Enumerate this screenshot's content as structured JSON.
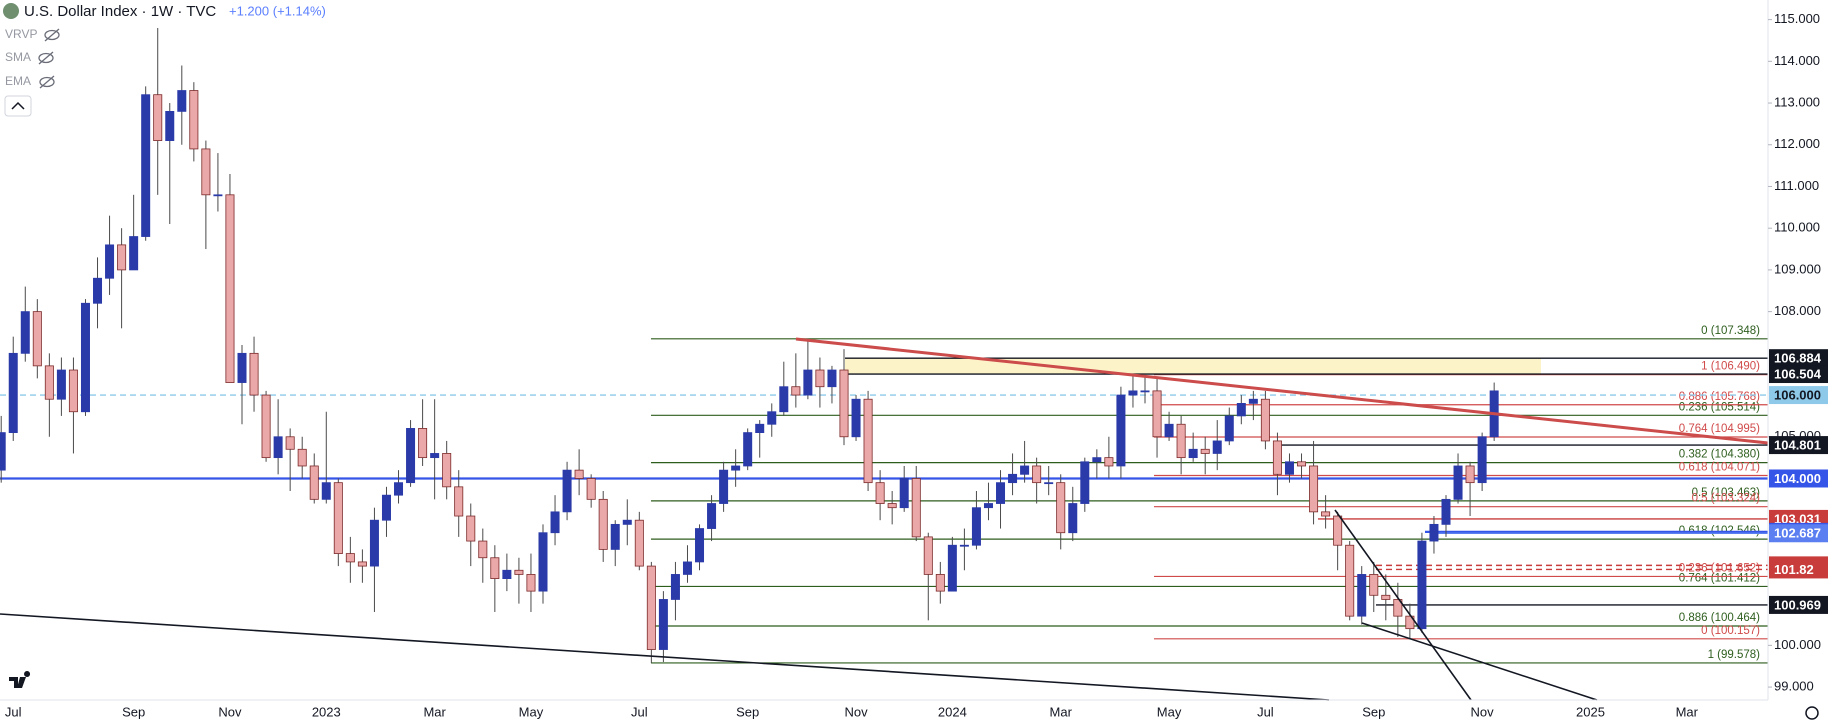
{
  "header": {
    "title": "U.S. Dollar Index · 1W · TVC",
    "change": "+1.200 (+1.14%)",
    "indicators": [
      "VRVP",
      "SMA",
      "EMA"
    ]
  },
  "chart_data": {
    "type": "candlestick",
    "bull_color": "#2a3aa8",
    "bear_color": "#eaa8a8",
    "bear_border": "#7d2b2b",
    "wick_color": "#4a4a4a",
    "ylim": [
      98.69,
      115.47
    ],
    "yticks": [
      {
        "value": 99,
        "label": "99.000"
      },
      {
        "value": 100,
        "label": "100.000"
      },
      {
        "value": 105,
        "label": "105.000"
      },
      {
        "value": 108,
        "label": "108.000"
      },
      {
        "value": 109,
        "label": "109.000"
      },
      {
        "value": 110,
        "label": "110.000"
      },
      {
        "value": 111,
        "label": "111.000"
      },
      {
        "value": 112,
        "label": "112.000"
      },
      {
        "value": 113,
        "label": "113.000"
      },
      {
        "value": 114,
        "label": "114.000"
      },
      {
        "value": 115,
        "label": "115.000"
      }
    ],
    "categories": [
      null,
      "Jul",
      null,
      null,
      null,
      null,
      null,
      null,
      null,
      null,
      null,
      "Sep",
      null,
      null,
      null,
      null,
      null,
      null,
      null,
      "Nov",
      null,
      null,
      null,
      null,
      null,
      null,
      null,
      "2023",
      null,
      null,
      null,
      null,
      null,
      null,
      null,
      null,
      "Mar",
      null,
      null,
      null,
      null,
      null,
      null,
      null,
      "May",
      null,
      null,
      null,
      null,
      null,
      null,
      null,
      null,
      "Jul",
      null,
      null,
      null,
      null,
      null,
      null,
      null,
      null,
      "Sep",
      null,
      null,
      null,
      null,
      null,
      null,
      null,
      null,
      "Nov",
      null,
      null,
      null,
      null,
      null,
      null,
      null,
      "2024",
      null,
      null,
      null,
      null,
      null,
      null,
      null,
      null,
      "Mar",
      null,
      null,
      null,
      null,
      null,
      null,
      null,
      null,
      "May",
      null,
      null,
      null,
      null,
      null,
      null,
      null,
      "Jul",
      null,
      null,
      null,
      null,
      null,
      null,
      null,
      null,
      "Sep",
      null,
      null,
      null,
      null,
      null,
      null,
      null,
      null,
      "Nov",
      null,
      null,
      null,
      null,
      null,
      null,
      null,
      null,
      "2025",
      null,
      null,
      null,
      null,
      null,
      null,
      null,
      "Mar",
      null,
      null,
      null,
      null,
      null,
      null
    ],
    "open": [
      104.2,
      105.1,
      107.0,
      108.0,
      106.7,
      105.9,
      106.6,
      105.6,
      108.2,
      108.8,
      109.6,
      109.0,
      109.8,
      113.2,
      112.1,
      112.8,
      113.3,
      111.9,
      110.8,
      110.8,
      106.3,
      107.0,
      106.0,
      104.5,
      105.0,
      104.7,
      104.3,
      103.5,
      103.9,
      102.2,
      102.0,
      101.9,
      103.0,
      103.6,
      103.9,
      105.2,
      104.5,
      104.6,
      103.8,
      103.1,
      102.5,
      102.1,
      101.6,
      101.8,
      101.7,
      101.3,
      102.7,
      103.2,
      104.2,
      104.0,
      103.5,
      102.3,
      102.9,
      103.0,
      101.9,
      99.9,
      101.1,
      101.7,
      102.0,
      102.8,
      103.4,
      104.2,
      104.3,
      105.1,
      105.3,
      105.6,
      106.2,
      106.0,
      106.6,
      106.2,
      106.6,
      105.0,
      105.9,
      103.9,
      103.4,
      103.3,
      104.0,
      102.6,
      101.7,
      101.3,
      102.4,
      102.4,
      103.3,
      103.4,
      103.9,
      104.1,
      104.3,
      103.9,
      103.9,
      102.7,
      103.4,
      104.4,
      104.5,
      104.3,
      106.0,
      106.1,
      106.1,
      105.0,
      105.3,
      104.5,
      104.7,
      104.6,
      104.9,
      105.5,
      105.8,
      105.9,
      104.9,
      104.1,
      104.4,
      104.3,
      103.2,
      103.1,
      102.4,
      100.7,
      101.7,
      101.2,
      101.1,
      100.7,
      100.4,
      102.5,
      102.9,
      103.5,
      104.3,
      103.9,
      105.0,
      null,
      null,
      null,
      null,
      null,
      null,
      null,
      null,
      null,
      null,
      null,
      null,
      null,
      null,
      null,
      null,
      null,
      null,
      null,
      null,
      null,
      null
    ],
    "high": [
      105.5,
      107.4,
      108.6,
      108.3,
      107.0,
      106.9,
      106.9,
      108.3,
      109.3,
      110.3,
      110.0,
      110.8,
      113.4,
      114.8,
      113.0,
      113.9,
      113.5,
      112.1,
      111.8,
      111.3,
      107.2,
      107.4,
      106.1,
      105.9,
      105.2,
      105.0,
      104.6,
      105.6,
      104.0,
      102.6,
      102.3,
      103.3,
      103.8,
      104.2,
      105.4,
      105.9,
      105.9,
      104.9,
      104.2,
      103.4,
      102.8,
      102.4,
      102.2,
      102.1,
      102.2,
      102.9,
      103.6,
      104.4,
      104.7,
      104.1,
      103.7,
      103.0,
      103.5,
      103.2,
      102.0,
      101.3,
      102.0,
      102.4,
      102.9,
      103.6,
      104.4,
      104.7,
      105.2,
      105.4,
      105.8,
      106.8,
      107.0,
      107.35,
      106.9,
      106.7,
      107.1,
      106.0,
      106.1,
      104.2,
      103.7,
      104.3,
      104.3,
      102.7,
      102.0,
      102.6,
      102.8,
      103.7,
      103.9,
      104.2,
      104.6,
      104.9,
      104.5,
      104.3,
      104.1,
      103.8,
      104.5,
      104.7,
      105.0,
      106.2,
      106.5,
      106.5,
      106.4,
      105.6,
      105.5,
      105.1,
      105.0,
      105.4,
      105.7,
      106.0,
      106.1,
      106.1,
      105.1,
      104.6,
      104.6,
      104.9,
      103.6,
      103.2,
      102.5,
      101.9,
      102.0,
      101.7,
      101.5,
      101.0,
      102.7,
      103.1,
      103.6,
      104.6,
      104.4,
      105.1,
      106.3,
      null,
      null,
      null,
      null,
      null,
      null,
      null,
      null,
      null,
      null,
      null,
      null,
      null,
      null,
      null,
      null,
      null,
      null,
      null,
      null,
      null,
      null
    ],
    "low": [
      103.9,
      104.9,
      106.8,
      106.4,
      105.0,
      105.5,
      104.6,
      105.5,
      107.6,
      108.4,
      107.6,
      109.0,
      109.7,
      110.8,
      110.1,
      112.0,
      111.6,
      109.5,
      110.4,
      106.3,
      105.3,
      105.6,
      104.4,
      104.1,
      103.7,
      104.0,
      103.4,
      103.4,
      101.9,
      101.5,
      101.5,
      100.8,
      102.6,
      103.4,
      103.8,
      104.3,
      103.5,
      103.5,
      102.6,
      101.9,
      101.5,
      100.8,
      101.3,
      101.0,
      100.8,
      101.0,
      102.4,
      103.0,
      103.6,
      103.3,
      102.0,
      101.9,
      102.4,
      101.8,
      99.58,
      99.6,
      100.6,
      101.5,
      101.8,
      102.5,
      103.2,
      103.8,
      104.2,
      104.5,
      105.0,
      105.5,
      105.7,
      105.9,
      105.7,
      105.8,
      104.8,
      104.9,
      103.7,
      103.0,
      102.9,
      103.2,
      102.5,
      100.6,
      101.0,
      101.3,
      101.8,
      102.3,
      103.0,
      102.8,
      103.6,
      103.9,
      103.4,
      103.6,
      102.3,
      102.5,
      103.2,
      104.0,
      104.0,
      104.0,
      105.7,
      105.8,
      104.5,
      104.9,
      104.1,
      104.4,
      104.1,
      104.2,
      104.8,
      105.3,
      105.4,
      104.7,
      103.6,
      103.9,
      104.0,
      102.9,
      102.8,
      101.8,
      100.6,
      100.5,
      100.8,
      100.6,
      100.2,
      100.16,
      100.3,
      102.2,
      102.6,
      103.4,
      103.1,
      103.7,
      104.9,
      null,
      null,
      null,
      null,
      null,
      null,
      null,
      null,
      null,
      null,
      null,
      null,
      null,
      null,
      null,
      null,
      null,
      null,
      null,
      null,
      null,
      null
    ],
    "close": [
      105.1,
      107.0,
      108.0,
      106.7,
      105.9,
      106.6,
      105.6,
      108.2,
      108.8,
      109.6,
      109.0,
      109.8,
      113.2,
      112.1,
      112.8,
      113.3,
      111.9,
      110.8,
      110.8,
      106.3,
      107.0,
      106.0,
      104.5,
      105.0,
      104.7,
      104.3,
      103.5,
      103.9,
      102.2,
      102.0,
      101.9,
      103.0,
      103.6,
      103.9,
      105.2,
      104.5,
      104.6,
      103.8,
      103.1,
      102.5,
      102.1,
      101.6,
      101.8,
      101.7,
      101.3,
      102.7,
      103.2,
      104.2,
      104.0,
      103.5,
      102.3,
      102.9,
      103.0,
      101.9,
      99.9,
      101.1,
      101.7,
      102.0,
      102.8,
      103.4,
      104.2,
      104.3,
      105.1,
      105.3,
      105.6,
      106.2,
      106.0,
      106.6,
      106.2,
      106.6,
      105.0,
      105.9,
      103.9,
      103.4,
      103.3,
      104.0,
      102.6,
      101.7,
      101.3,
      102.4,
      102.4,
      103.3,
      103.4,
      103.9,
      104.1,
      104.3,
      103.9,
      103.9,
      102.7,
      103.4,
      104.4,
      104.5,
      104.3,
      106.0,
      106.1,
      106.1,
      105.0,
      105.3,
      104.5,
      104.7,
      104.6,
      104.9,
      105.5,
      105.8,
      105.9,
      104.9,
      104.1,
      104.4,
      104.3,
      103.2,
      103.1,
      102.4,
      100.7,
      101.7,
      101.2,
      101.1,
      100.7,
      100.4,
      102.5,
      102.9,
      103.5,
      104.3,
      103.9,
      105.0,
      106.1,
      null,
      null,
      null,
      null,
      null,
      null,
      null,
      null,
      null,
      null,
      null,
      null,
      null,
      null,
      null,
      null,
      null,
      null,
      null,
      null,
      null,
      null
    ],
    "fib_sets": [
      {
        "color": "#2e5e1e",
        "levels": [
          {
            "value": 107.348,
            "label": "0 (107.348)"
          },
          {
            "value": 105.514,
            "label": "0.236 (105.514)"
          },
          {
            "value": 104.38,
            "label": "0.382 (104.380)"
          },
          {
            "value": 103.463,
            "label": "0.5 (103.463)"
          },
          {
            "value": 102.546,
            "label": "0.618 (102.546)"
          },
          {
            "value": 101.412,
            "label": "0.764 (101.412)"
          },
          {
            "value": 100.464,
            "label": "0.886 (100.464)"
          },
          {
            "value": 99.578,
            "label": "1 (99.578)"
          }
        ]
      },
      {
        "color": "#d04a4a",
        "levels": [
          {
            "value": 106.49,
            "label": "1 (106.490)"
          },
          {
            "value": 105.768,
            "label": "0.886 (105.768)"
          },
          {
            "value": 104.995,
            "label": "0.764 (104.995)"
          },
          {
            "value": 104.071,
            "label": "0.618 (104.071)"
          },
          {
            "value": 103.324,
            "label": "0.5 (103.324)"
          },
          {
            "value": 101.652,
            "label": "0.236 (101.652)"
          },
          {
            "value": 100.157,
            "label": "0 (100.157)"
          }
        ]
      }
    ],
    "price_tags": [
      {
        "value": 106.884,
        "color": "#131722",
        "text_color": "#ffffff"
      },
      {
        "value": 106.504,
        "color": "#131722",
        "text_color": "#ffffff"
      },
      {
        "value": 106.0,
        "label": "106.000",
        "color": "#8ec9ea",
        "text_color": "#131722",
        "style": "dashed"
      },
      {
        "value": 104.801,
        "color": "#131722",
        "text_color": "#ffffff"
      },
      {
        "value": 104.0,
        "label": "104.000",
        "color": "#3554e8",
        "text_color": "#ffffff"
      },
      {
        "value": 103.031,
        "color": "#c93c3c",
        "text_color": "#ffffff"
      },
      {
        "value": 102.72,
        "label": "102.720",
        "color": "#3554e8",
        "text_color": "#ffffff"
      },
      {
        "value": 102.687,
        "color": "#5b7ff0",
        "text_color": "#ffffff"
      },
      {
        "value": 101.917,
        "color": "#c93c3c",
        "text_color": "#ffffff",
        "style": "dashed"
      },
      {
        "value": 101.82,
        "color": "#c93c3c",
        "text_color": "#ffffff",
        "style": "dashed"
      },
      {
        "value": 100.969,
        "color": "#131722",
        "text_color": "#ffffff"
      }
    ]
  }
}
